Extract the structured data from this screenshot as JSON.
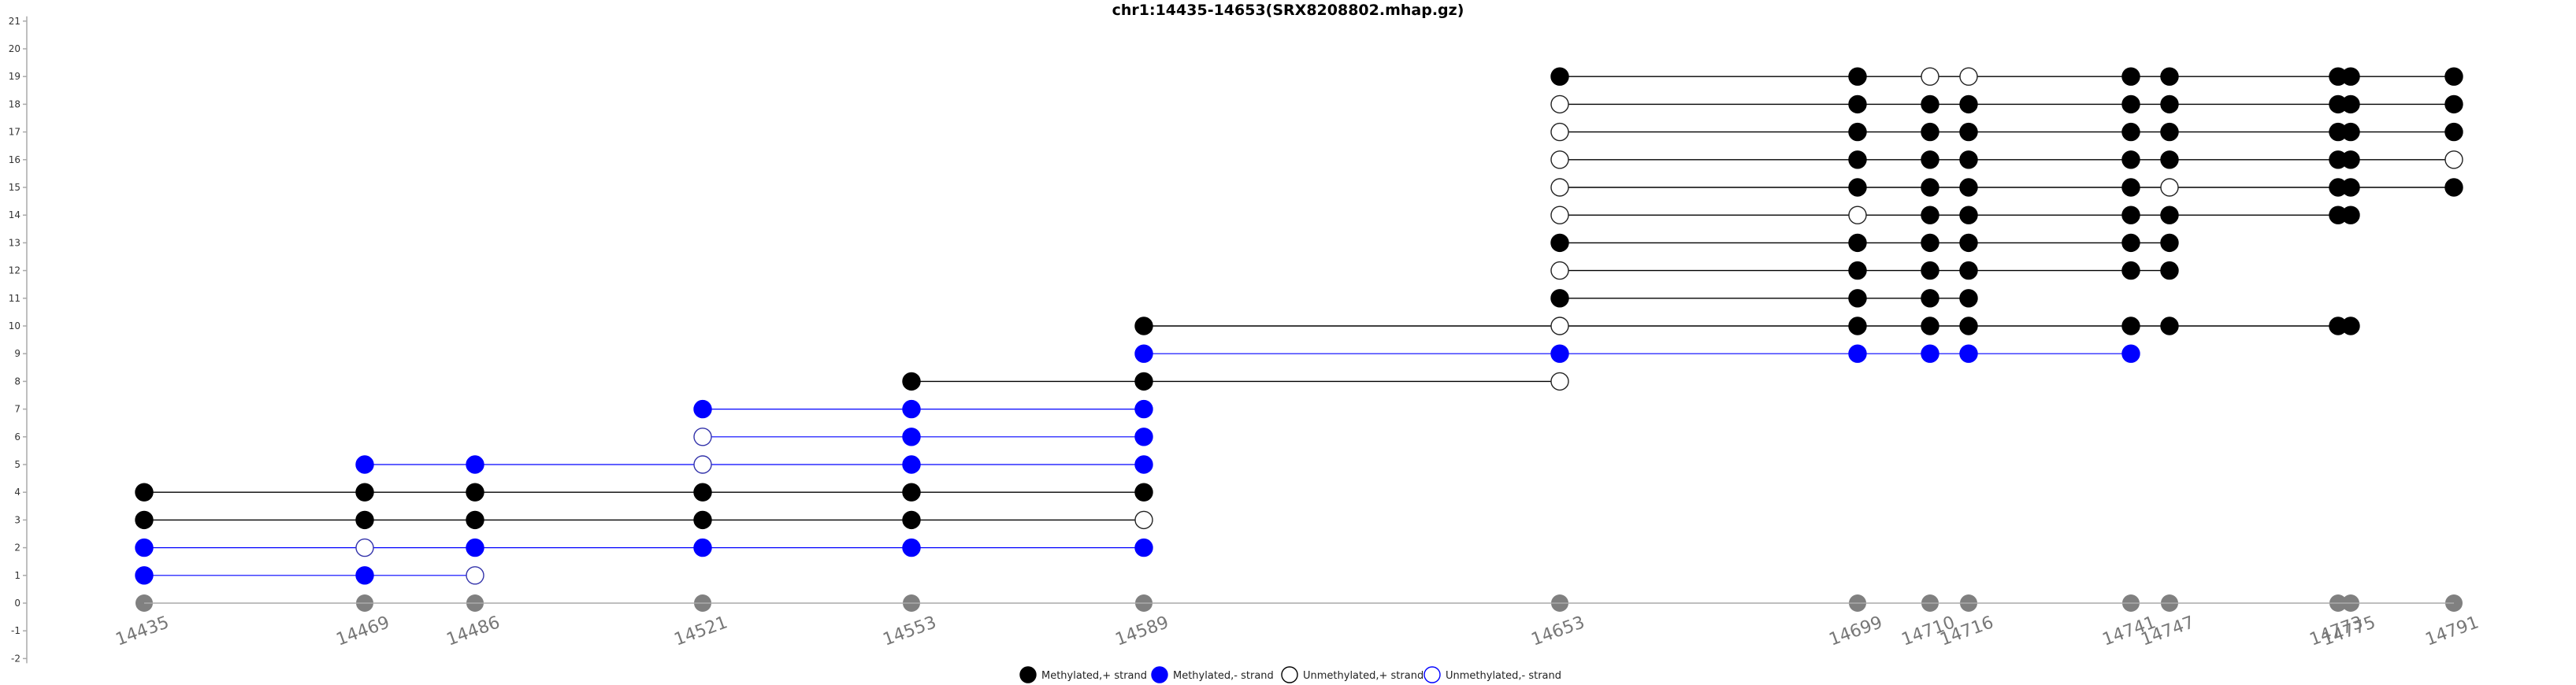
{
  "chart_data": {
    "type": "scatter",
    "title": "chr1:14435-14653(SRX8208802.mhap.gz)",
    "xlabel": "",
    "ylabel": "",
    "ylim": [
      -2,
      21
    ],
    "y_ticks": [
      "-2",
      "-1",
      "0",
      "1",
      "2",
      "3",
      "4",
      "5",
      "6",
      "7",
      "8",
      "9",
      "10",
      "11",
      "12",
      "13",
      "14",
      "15",
      "16",
      "17",
      "18",
      "19",
      "20",
      "21"
    ],
    "x_ticks": [
      "14435",
      "14469",
      "14486",
      "14521",
      "14553",
      "14589",
      "14653",
      "14699",
      "14710",
      "14716",
      "14741",
      "14747",
      "14773",
      "14775",
      "14791"
    ],
    "cpg_positions": [
      14435,
      14469,
      14486,
      14521,
      14553,
      14589,
      14653,
      14699,
      14710,
      14716,
      14741,
      14747,
      14773,
      14775,
      14791
    ],
    "colors": {
      "plus_strand_line": "#000000",
      "minus_strand_line": "#0000ff",
      "methylated_plus": "#000000",
      "methylated_minus": "#0000ff",
      "position_marker": "#808080",
      "axis": "#aaaaaa"
    },
    "legend_placement": "bottom-center",
    "legend": [
      {
        "label": "Methylated,+ strand",
        "kind": "filled",
        "color": "#000000"
      },
      {
        "label": "Methylated,- strand",
        "kind": "filled",
        "color": "#0000ff"
      },
      {
        "label": "Unmethylated,+ strand",
        "kind": "hollow",
        "color": "#000000"
      },
      {
        "label": "Unmethylated,- strand",
        "kind": "hollow",
        "color": "#0000ff"
      }
    ],
    "reads": [
      {
        "row": 1,
        "strand": "-",
        "points": [
          [
            14435,
            1
          ],
          [
            14469,
            1
          ],
          [
            14486,
            0
          ]
        ]
      },
      {
        "row": 2,
        "strand": "-",
        "points": [
          [
            14435,
            1
          ],
          [
            14469,
            0
          ],
          [
            14486,
            1
          ],
          [
            14521,
            1
          ],
          [
            14553,
            1
          ],
          [
            14589,
            1
          ]
        ]
      },
      {
        "row": 3,
        "strand": "+",
        "points": [
          [
            14435,
            1
          ],
          [
            14469,
            1
          ],
          [
            14486,
            1
          ],
          [
            14521,
            1
          ],
          [
            14553,
            1
          ],
          [
            14589,
            0
          ]
        ]
      },
      {
        "row": 4,
        "strand": "+",
        "points": [
          [
            14435,
            1
          ],
          [
            14469,
            1
          ],
          [
            14486,
            1
          ],
          [
            14521,
            1
          ],
          [
            14553,
            1
          ],
          [
            14589,
            1
          ]
        ]
      },
      {
        "row": 5,
        "strand": "-",
        "points": [
          [
            14469,
            1
          ],
          [
            14486,
            1
          ],
          [
            14521,
            0
          ],
          [
            14553,
            1
          ],
          [
            14589,
            1
          ]
        ]
      },
      {
        "row": 6,
        "strand": "-",
        "points": [
          [
            14521,
            0
          ],
          [
            14553,
            1
          ],
          [
            14589,
            1
          ]
        ]
      },
      {
        "row": 7,
        "strand": "-",
        "points": [
          [
            14521,
            1
          ],
          [
            14553,
            1
          ],
          [
            14589,
            1
          ]
        ]
      },
      {
        "row": 8,
        "strand": "+",
        "points": [
          [
            14553,
            1
          ],
          [
            14589,
            1
          ],
          [
            14653,
            0
          ]
        ]
      },
      {
        "row": 9,
        "strand": "-",
        "points": [
          [
            14589,
            1
          ],
          [
            14653,
            1
          ],
          [
            14699,
            1
          ],
          [
            14710,
            1
          ],
          [
            14716,
            1
          ],
          [
            14741,
            1
          ]
        ]
      },
      {
        "row": 10,
        "strand": "+",
        "points": [
          [
            14589,
            1
          ],
          [
            14653,
            0
          ],
          [
            14699,
            1
          ],
          [
            14710,
            1
          ],
          [
            14716,
            1
          ],
          [
            14741,
            1
          ],
          [
            14747,
            1
          ],
          [
            14773,
            1
          ],
          [
            14775,
            1
          ]
        ]
      },
      {
        "row": 11,
        "strand": "+",
        "points": [
          [
            14653,
            1
          ],
          [
            14699,
            1
          ],
          [
            14710,
            1
          ],
          [
            14716,
            1
          ]
        ]
      },
      {
        "row": 12,
        "strand": "+",
        "points": [
          [
            14653,
            0
          ],
          [
            14699,
            1
          ],
          [
            14710,
            1
          ],
          [
            14716,
            1
          ],
          [
            14741,
            1
          ],
          [
            14747,
            1
          ]
        ]
      },
      {
        "row": 13,
        "strand": "+",
        "points": [
          [
            14653,
            1
          ],
          [
            14699,
            1
          ],
          [
            14710,
            1
          ],
          [
            14716,
            1
          ],
          [
            14741,
            1
          ],
          [
            14747,
            1
          ]
        ]
      },
      {
        "row": 14,
        "strand": "+",
        "points": [
          [
            14653,
            0
          ],
          [
            14699,
            0
          ],
          [
            14710,
            1
          ],
          [
            14716,
            1
          ],
          [
            14741,
            1
          ],
          [
            14747,
            1
          ],
          [
            14773,
            1
          ],
          [
            14775,
            1
          ]
        ]
      },
      {
        "row": 15,
        "strand": "+",
        "points": [
          [
            14653,
            0
          ],
          [
            14699,
            1
          ],
          [
            14710,
            1
          ],
          [
            14716,
            1
          ],
          [
            14741,
            1
          ],
          [
            14747,
            0
          ],
          [
            14773,
            1
          ],
          [
            14775,
            1
          ],
          [
            14791,
            1
          ]
        ]
      },
      {
        "row": 16,
        "strand": "+",
        "points": [
          [
            14653,
            0
          ],
          [
            14699,
            1
          ],
          [
            14710,
            1
          ],
          [
            14716,
            1
          ],
          [
            14741,
            1
          ],
          [
            14747,
            1
          ],
          [
            14773,
            1
          ],
          [
            14775,
            1
          ],
          [
            14791,
            0
          ]
        ]
      },
      {
        "row": 17,
        "strand": "+",
        "points": [
          [
            14653,
            0
          ],
          [
            14699,
            1
          ],
          [
            14710,
            1
          ],
          [
            14716,
            1
          ],
          [
            14741,
            1
          ],
          [
            14747,
            1
          ],
          [
            14773,
            1
          ],
          [
            14775,
            1
          ],
          [
            14791,
            1
          ]
        ]
      },
      {
        "row": 18,
        "strand": "+",
        "points": [
          [
            14653,
            0
          ],
          [
            14699,
            1
          ],
          [
            14710,
            1
          ],
          [
            14716,
            1
          ],
          [
            14741,
            1
          ],
          [
            14747,
            1
          ],
          [
            14773,
            1
          ],
          [
            14775,
            1
          ],
          [
            14791,
            1
          ]
        ]
      },
      {
        "row": 19,
        "strand": "+",
        "points": [
          [
            14653,
            1
          ],
          [
            14699,
            1
          ],
          [
            14710,
            0
          ],
          [
            14716,
            0
          ],
          [
            14741,
            1
          ],
          [
            14747,
            1
          ],
          [
            14773,
            1
          ],
          [
            14775,
            1
          ],
          [
            14791,
            1
          ]
        ]
      }
    ]
  }
}
